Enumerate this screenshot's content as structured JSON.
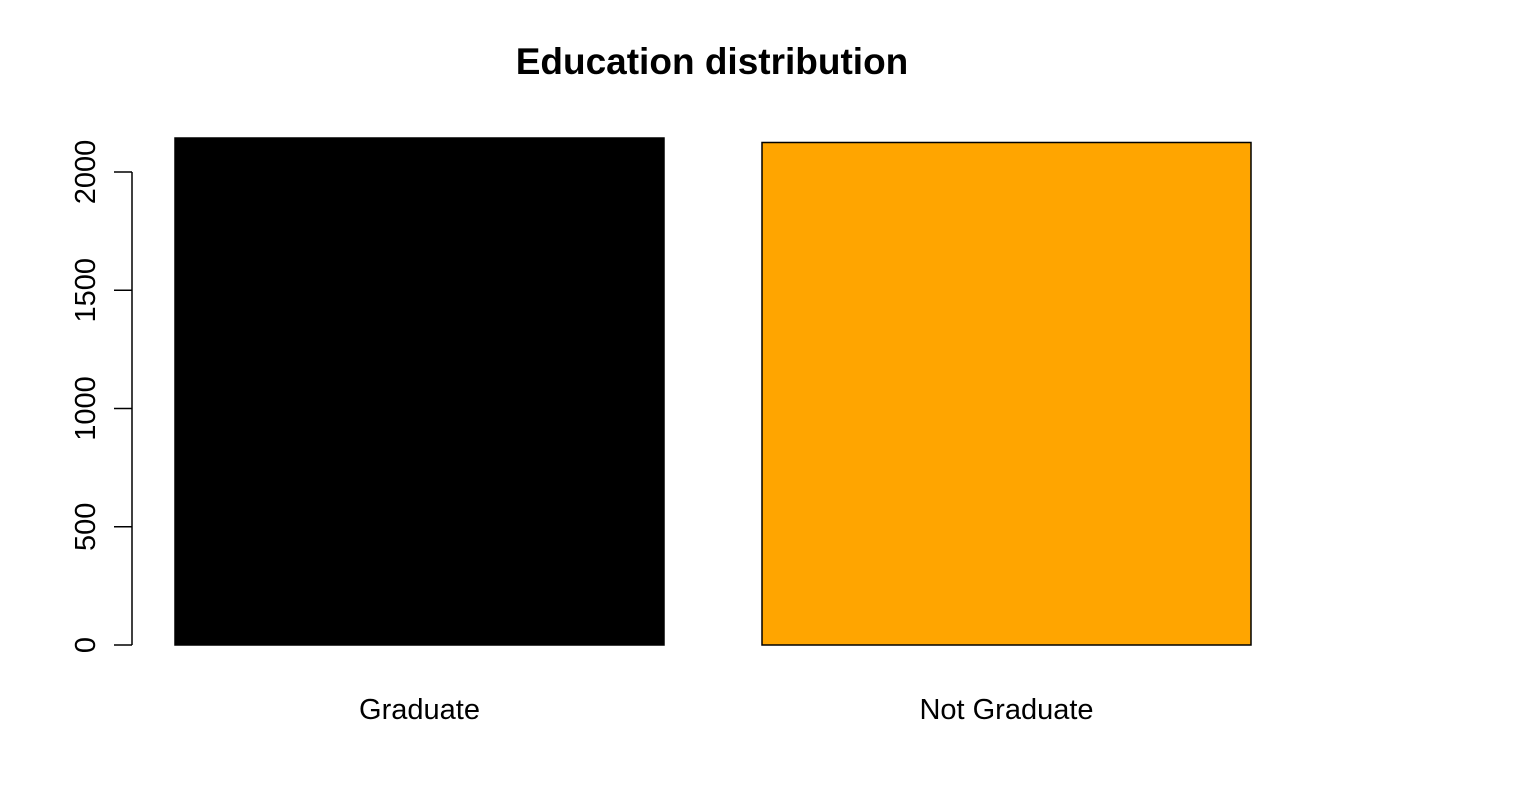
{
  "chart_data": {
    "type": "bar",
    "title": "Education distribution",
    "xlabel": "",
    "ylabel": "",
    "categories": [
      "Graduate",
      "Not Graduate"
    ],
    "values": [
      2144,
      2125
    ],
    "colors": [
      "#000000",
      "#ffa500"
    ],
    "bar_border_color": "#000000",
    "ylim": [
      0,
      2144
    ],
    "yticks": [
      0,
      500,
      1000,
      1500,
      2000
    ],
    "ytick_labels": [
      "0",
      "500",
      "1000",
      "1500",
      "2000"
    ],
    "grid": false,
    "legend": "none"
  }
}
